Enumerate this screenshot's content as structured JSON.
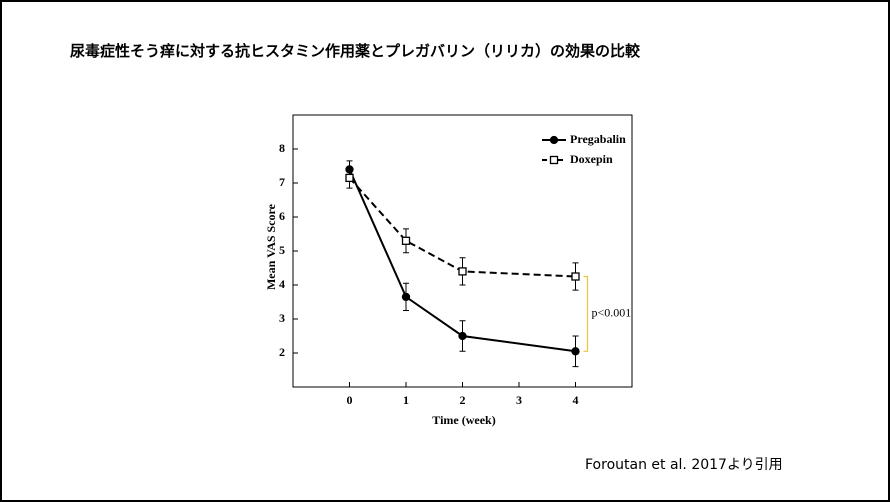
{
  "slide_title": "尿毒症性そう痒に対する抗ヒスタミン作用薬とプレガバリン（リリカ）の効果の比較",
  "source": "Foroutan et al. 2017より引用",
  "chart_data": {
    "type": "line",
    "x_label": "Time (week)",
    "y_label": "Mean VAS Score",
    "x": [
      0,
      1,
      2,
      4
    ],
    "xlim": [
      -1,
      5
    ],
    "xticks": [
      0,
      1,
      2,
      3,
      4
    ],
    "ylim": [
      1,
      9
    ],
    "yticks": [
      2,
      3,
      4,
      5,
      6,
      7,
      8
    ],
    "legend": "upper right",
    "annotation": "p<0.001",
    "series": [
      {
        "name": "Pregabalin",
        "color": "#000000",
        "linestyle": "solid",
        "marker": "circle",
        "values": [
          7.4,
          3.65,
          2.5,
          2.05
        ],
        "errors": [
          0.25,
          0.4,
          0.45,
          0.45
        ]
      },
      {
        "name": "Doxepin",
        "color": "#000000",
        "linestyle": "dashed",
        "marker": "square",
        "values": [
          7.15,
          5.3,
          4.4,
          4.25
        ],
        "errors": [
          0.3,
          0.35,
          0.4,
          0.4
        ]
      }
    ]
  }
}
